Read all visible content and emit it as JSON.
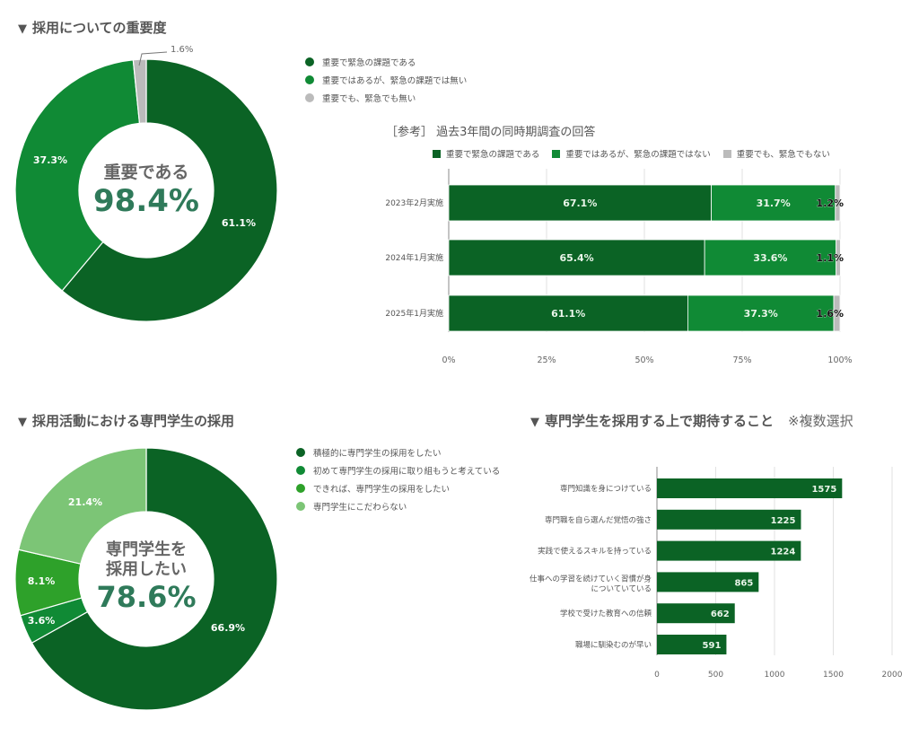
{
  "section1": {
    "heading": "採用についての重要度",
    "triangle": "▼",
    "center_label": "重要である",
    "center_value": "98.4%",
    "callout_label": "1.6%",
    "legend": [
      {
        "label": "重要で緊急の課題である",
        "color": "#0b6325"
      },
      {
        "label": "重要ではあるが、緊急の課題では無い",
        "color": "#108a35"
      },
      {
        "label": "重要でも、緊急でも無い",
        "color": "#bbbbbb"
      }
    ]
  },
  "section2": {
    "subtitle": "［参考］ 過去3年間の同時期調査の回答",
    "legend": [
      {
        "label": "重要で緊急の課題である",
        "color": "#0b6325"
      },
      {
        "label": "重要ではあるが、緊急の課題ではない",
        "color": "#108a35"
      },
      {
        "label": "重要でも、緊急でもない",
        "color": "#bbbbbb"
      }
    ]
  },
  "section3": {
    "heading": "採用活動における専門学生の採用",
    "triangle": "▼",
    "center_label_line1": "専門学生を",
    "center_label_line2": "採用したい",
    "center_value": "78.6%",
    "legend": [
      {
        "label": "積極的に専門学生の採用をしたい",
        "color": "#0b6325"
      },
      {
        "label": "初めて専門学生の採用に取り組もうと考えている",
        "color": "#108a35"
      },
      {
        "label": "できれば、専門学生の採用をしたい",
        "color": "#2ea12a"
      },
      {
        "label": "専門学生にこだわらない",
        "color": "#7cc576"
      }
    ]
  },
  "section4": {
    "heading": "専門学生を採用する上で期待すること",
    "triangle": "▼",
    "note": "※複数選択"
  },
  "chart_data": [
    {
      "type": "pie",
      "title": "採用についての重要度",
      "donut": true,
      "center_text": "重要である 98.4%",
      "categories": [
        "重要で緊急の課題である",
        "重要ではあるが、緊急の課題では無い",
        "重要でも、緊急でも無い"
      ],
      "values": [
        61.1,
        37.3,
        1.6
      ],
      "labels": [
        "61.1%",
        "37.3%",
        "1.6%"
      ],
      "colors": [
        "#0b6325",
        "#108a35",
        "#bbbbbb"
      ],
      "legend_position": "right"
    },
    {
      "type": "bar",
      "orientation": "horizontal",
      "stacked": "percent",
      "title": "［参考］ 過去3年間の同時期調査の回答",
      "categories": [
        "2023年2月実施",
        "2024年1月実施",
        "2025年1月実施"
      ],
      "series": [
        {
          "name": "重要で緊急の課題である",
          "values": [
            67.1,
            65.4,
            61.1
          ],
          "color": "#0b6325"
        },
        {
          "name": "重要ではあるが、緊急の課題ではない",
          "values": [
            31.7,
            33.6,
            37.3
          ],
          "color": "#108a35"
        },
        {
          "name": "重要でも、緊急でもない",
          "values": [
            1.2,
            1.1,
            1.6
          ],
          "color": "#bbbbbb"
        }
      ],
      "xticks": [
        "0%",
        "25%",
        "50%",
        "75%",
        "100%"
      ],
      "xlim": [
        0,
        100
      ],
      "grid": true,
      "legend_position": "top"
    },
    {
      "type": "pie",
      "title": "採用活動における専門学生の採用",
      "donut": true,
      "center_text": "専門学生を採用したい 78.6%",
      "categories": [
        "積極的に専門学生の採用をしたい",
        "初めて専門学生の採用に取り組もうと考えている",
        "できれば、専門学生の採用をしたい",
        "専門学生にこだわらない"
      ],
      "values": [
        66.9,
        3.6,
        8.1,
        21.4
      ],
      "labels": [
        "66.9%",
        "3.6%",
        "8.1%",
        "21.4%"
      ],
      "colors": [
        "#0b6325",
        "#108a35",
        "#2ea12a",
        "#7cc576"
      ],
      "legend_position": "right"
    },
    {
      "type": "bar",
      "orientation": "horizontal",
      "title": "専門学生を採用する上で期待すること ※複数選択",
      "categories": [
        "専門知識を身につけている",
        "専門職を自ら選んだ覚悟の強さ",
        "実践で使えるスキルを持っている",
        "仕事への学習を続けていく習慣が身についていている",
        "学校で受けた教育への信頼",
        "職場に馴染むのが早い"
      ],
      "values": [
        1575,
        1225,
        1224,
        865,
        662,
        591
      ],
      "color": "#0b6325",
      "xticks": [
        "0",
        "500",
        "1000",
        "1500",
        "2000"
      ],
      "xlim": [
        0,
        2000
      ],
      "grid": true
    }
  ]
}
